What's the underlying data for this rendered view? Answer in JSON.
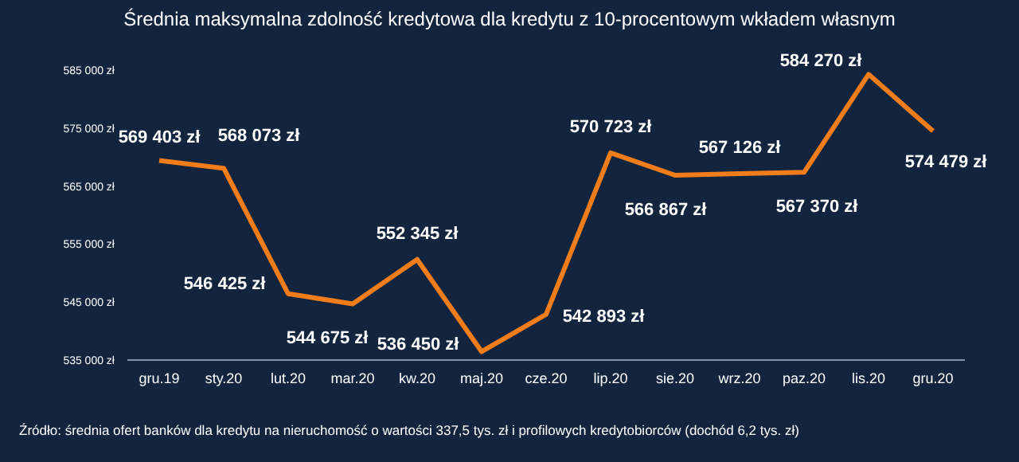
{
  "chart_data": {
    "type": "line",
    "title": "Średnia maksymalna zdolność kredytowa dla kredytu z 10-procentowym wkładem własnym",
    "categories": [
      "gru.19",
      "sty.20",
      "lut.20",
      "mar.20",
      "kw.20",
      "maj.20",
      "cze.20",
      "lip.20",
      "sie.20",
      "wrz.20",
      "paz.20",
      "lis.20",
      "gru.20"
    ],
    "series": [
      {
        "color": "#f07d1a",
        "values": [
          569403,
          568073,
          546425,
          544675,
          552345,
          536450,
          542893,
          570723,
          566867,
          567126,
          567370,
          584270,
          574479
        ],
        "value_labels": [
          "569 403 zł",
          "568 073 zł",
          "546 425 zł",
          "544 675 zł",
          "552 345 zł",
          "536 450 zł",
          "542 893 zł",
          "570 723 zł",
          "566 867 zł",
          "567 126 zł",
          "567 370 zł",
          "584 270 zł",
          "574 479 zł"
        ]
      }
    ],
    "ylim": [
      535000,
      585000
    ],
    "yticks": [
      {
        "value": 535000,
        "label": "535 000 zł"
      },
      {
        "value": 545000,
        "label": "545 000 zł"
      },
      {
        "value": 555000,
        "label": "555 000 zł"
      },
      {
        "value": 565000,
        "label": "565 000 zł"
      },
      {
        "value": 575000,
        "label": "575 000 zł"
      },
      {
        "value": 585000,
        "label": "585 000 zł"
      }
    ],
    "grid": false,
    "legend": false,
    "marker": "none",
    "line_style": "solid",
    "annotations": [
      "Źródło: średnia ofert banków dla kredytu na nieruchomość o wartości 337,5 tys. zł i profilowych kredytobiorców (dochód 6,2 tys. zł)"
    ]
  }
}
